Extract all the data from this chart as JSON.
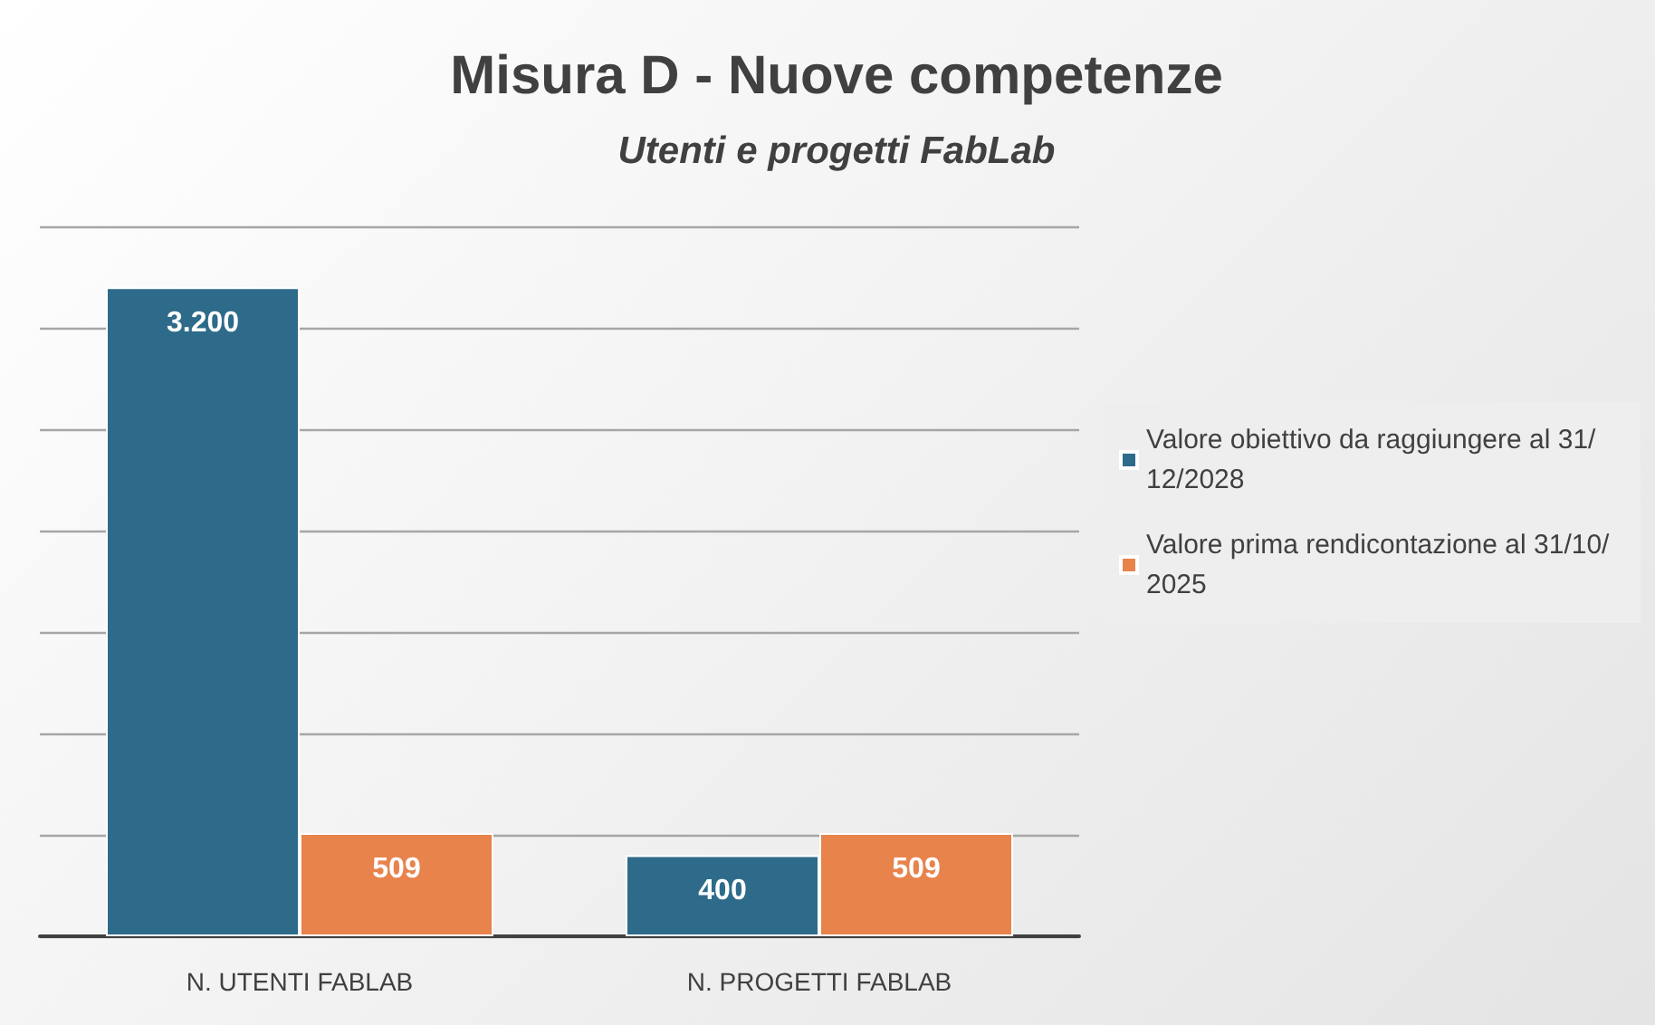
{
  "chart_data": {
    "type": "bar",
    "title": "Misura D - Nuove competenze",
    "subtitle": "Utenti e progetti FabLab",
    "categories": [
      "N. UTENTI FABLAB",
      "N. PROGETTI FABLAB"
    ],
    "series": [
      {
        "name": "Valore obiettivo da raggiungere al 31/12/2028",
        "color": "#2e6b8a",
        "values": [
          3200,
          400
        ],
        "value_labels": [
          "3.200",
          "400"
        ]
      },
      {
        "name": "Valore prima rendicontazione al 31/10/2025",
        "color": "#e8834c",
        "values": [
          509,
          509
        ],
        "value_labels": [
          "509",
          "509"
        ]
      }
    ],
    "ylim": [
      0,
      3500
    ],
    "yticks": [
      {
        "value": 0,
        "label": null
      },
      {
        "value": 500,
        "label": null
      },
      {
        "value": 1000,
        "label": null
      },
      {
        "value": 1500,
        "label": null
      },
      {
        "value": 2000,
        "label": null
      },
      {
        "value": 2500,
        "label": null
      },
      {
        "value": 3000,
        "label": null
      },
      {
        "value": 3500,
        "label": null
      }
    ],
    "tick_labels": "x",
    "grid": "y",
    "legend": "right"
  }
}
